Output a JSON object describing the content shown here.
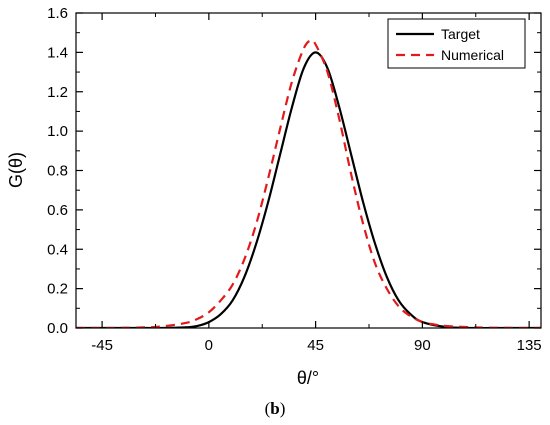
{
  "figure": {
    "panel_prefix": "(",
    "panel_letter": "b",
    "panel_suffix": ")"
  },
  "chart_data": {
    "type": "line",
    "xlabel": "θ/°",
    "ylabel": "G(θ)",
    "xlim": [
      -56,
      140
    ],
    "ylim": [
      0,
      1.6
    ],
    "x_ticks": [
      -45,
      0,
      45,
      90,
      135
    ],
    "x_ticks_minor": [
      -22.5,
      22.5,
      67.5,
      112.5
    ],
    "y_ticks": [
      0.0,
      0.2,
      0.4,
      0.6,
      0.8,
      1.0,
      1.2,
      1.4,
      1.6
    ],
    "y_tick_labels": [
      "0.0",
      "0.2",
      "0.4",
      "0.6",
      "0.8",
      "1.0",
      "1.2",
      "1.4",
      "1.6"
    ],
    "grid": false,
    "legend": {
      "placement": "top-right"
    },
    "series": [
      {
        "name": "Target",
        "color": "#000000",
        "dash": "solid",
        "x": [
          -56,
          -45,
          -30,
          -20,
          -10,
          -5,
          0,
          5,
          10,
          15,
          20,
          25,
          30,
          35,
          40,
          45,
          50,
          55,
          60,
          65,
          70,
          75,
          80,
          85,
          90,
          100,
          110,
          120,
          140
        ],
        "y": [
          0,
          0,
          0,
          0,
          0.003,
          0.01,
          0.03,
          0.07,
          0.14,
          0.26,
          0.43,
          0.64,
          0.88,
          1.12,
          1.32,
          1.4,
          1.32,
          1.12,
          0.88,
          0.64,
          0.43,
          0.26,
          0.14,
          0.07,
          0.03,
          0.005,
          0,
          0,
          0
        ]
      },
      {
        "name": "Numerical",
        "color": "#e31a1c",
        "dash": "dashed",
        "x": [
          -56,
          -45,
          -30,
          -20,
          -10,
          -5,
          0,
          5,
          10,
          15,
          20,
          25,
          30,
          35,
          40,
          43,
          45,
          50,
          55,
          60,
          65,
          70,
          75,
          80,
          85,
          90,
          95,
          100,
          110,
          120,
          140
        ],
        "y": [
          0,
          0,
          0.002,
          0.008,
          0.025,
          0.045,
          0.08,
          0.14,
          0.22,
          0.35,
          0.53,
          0.76,
          1.01,
          1.25,
          1.42,
          1.46,
          1.44,
          1.3,
          1.06,
          0.78,
          0.53,
          0.33,
          0.2,
          0.11,
          0.06,
          0.03,
          0.018,
          0.01,
          0.004,
          0.001,
          0
        ]
      }
    ]
  }
}
